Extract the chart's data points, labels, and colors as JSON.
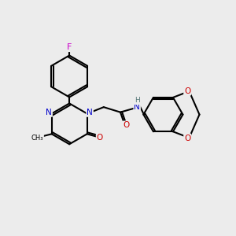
{
  "background_color": "#ececec",
  "bond_color": "#000000",
  "bond_width": 1.5,
  "atom_colors": {
    "N": "#0000cc",
    "O": "#cc0000",
    "F": "#cc00cc",
    "H": "#557777",
    "C": "#000000"
  },
  "font_size": 7.5
}
